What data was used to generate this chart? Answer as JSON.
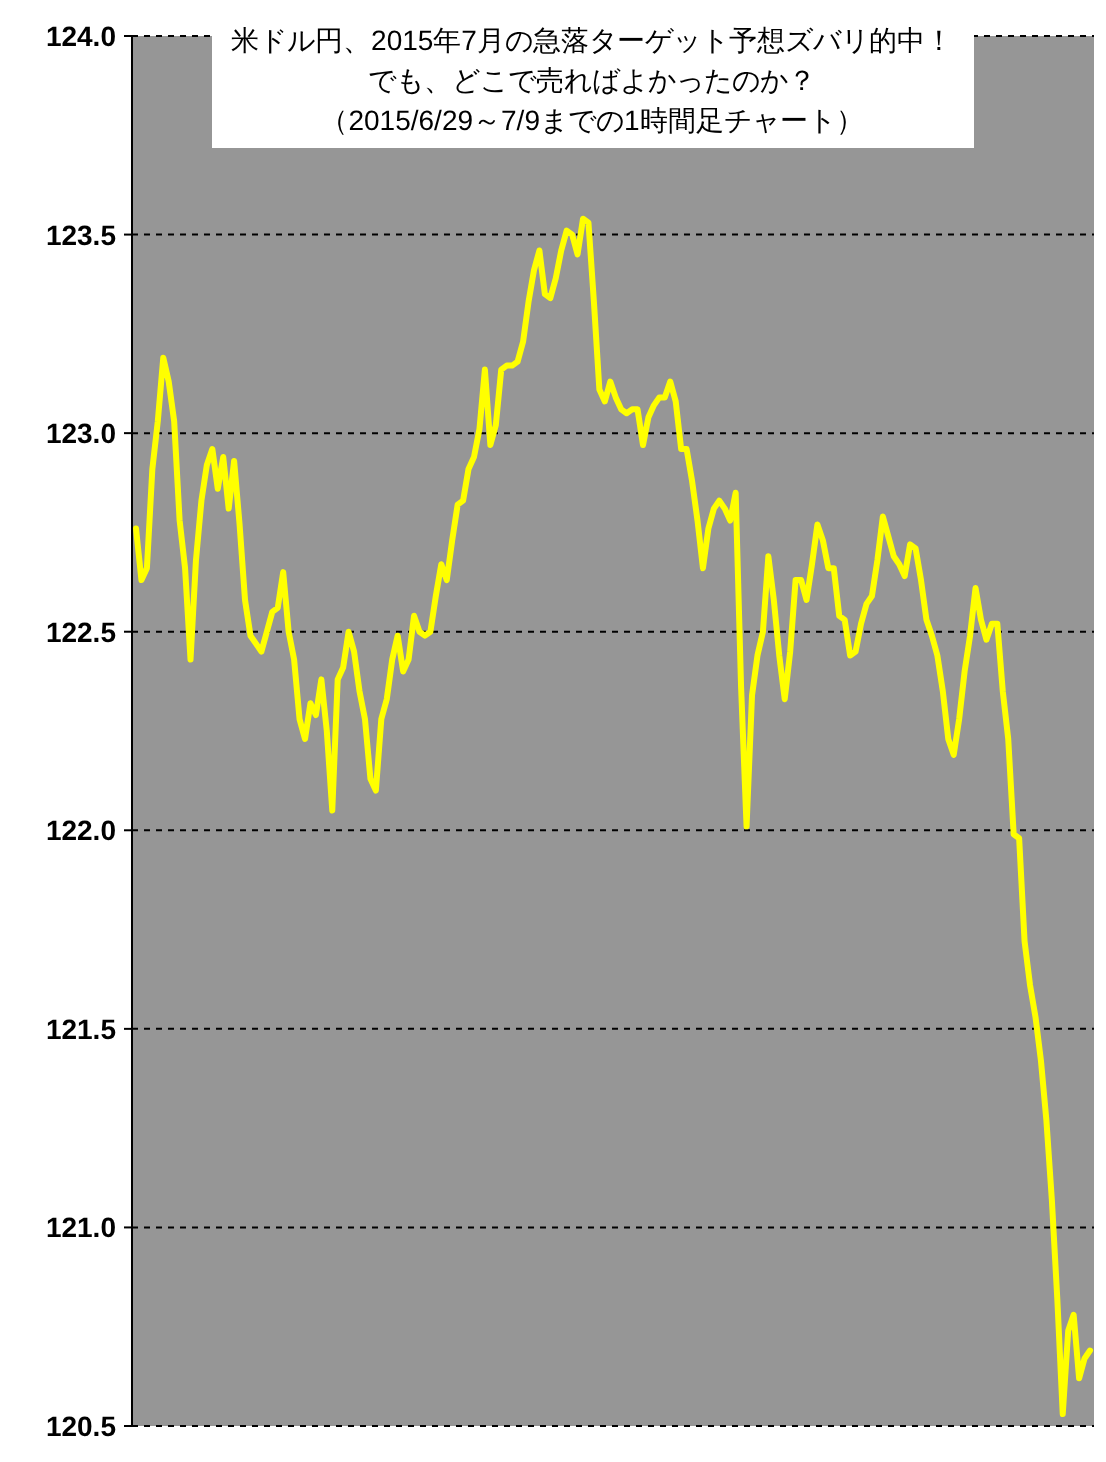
{
  "chart_data": {
    "type": "line",
    "title": "米ドル円、2015年7月の急落ターゲット予想ズバリ的中！",
    "subtitle": "でも、どこで売ればよかったのか？",
    "annotations": [
      "（2015/6/29～7/9までの1時間足チャート）"
    ],
    "categories": [
      null,
      null,
      null,
      null,
      null,
      null,
      null,
      null,
      null,
      null,
      null,
      null,
      null,
      null,
      null,
      null,
      null,
      null,
      null,
      null,
      null,
      null,
      null,
      null,
      null,
      null,
      null,
      null,
      null,
      null,
      null,
      null,
      null,
      null,
      null,
      null,
      null,
      null,
      null,
      null,
      null,
      null,
      null,
      null,
      null,
      null,
      null,
      null,
      null,
      null,
      null,
      null,
      null,
      null,
      null,
      null,
      null,
      null,
      null,
      null,
      null,
      null,
      null,
      null,
      null,
      null,
      null,
      null,
      null,
      null,
      null,
      null,
      null,
      null,
      null,
      null,
      null,
      null,
      null,
      null,
      null,
      null,
      null,
      null,
      null,
      null,
      null,
      null,
      null,
      null,
      null,
      null,
      null,
      null,
      null,
      null,
      null,
      null,
      null,
      null,
      null,
      null,
      null,
      null,
      null,
      null,
      null,
      null,
      null,
      null,
      null,
      null,
      null,
      null,
      null,
      null,
      null,
      null,
      null,
      null,
      null,
      null,
      null,
      null,
      null,
      null,
      null,
      null,
      null,
      null,
      null,
      null,
      null,
      null,
      null,
      null,
      null,
      null,
      null,
      null,
      null,
      null,
      null,
      null,
      null,
      null,
      null,
      null,
      null,
      null,
      null,
      null,
      null,
      null,
      null,
      null,
      null,
      null,
      null,
      null,
      null,
      null,
      null,
      null,
      null,
      null,
      null,
      null,
      null,
      null,
      null,
      null,
      null,
      null,
      null,
      null
    ],
    "series": [
      {
        "color": "#ffff00",
        "values": [
          122.76,
          122.63,
          122.66,
          122.91,
          123.03,
          123.19,
          123.13,
          123.03,
          122.78,
          122.66,
          122.43,
          122.68,
          122.83,
          122.92,
          122.96,
          122.86,
          122.94,
          122.81,
          122.93,
          122.77,
          122.58,
          122.49,
          122.47,
          122.45,
          122.5,
          122.55,
          122.56,
          122.65,
          122.5,
          122.43,
          122.28,
          122.23,
          122.32,
          122.29,
          122.38,
          122.25,
          122.05,
          122.38,
          122.41,
          122.5,
          122.45,
          122.35,
          122.28,
          122.13,
          122.1,
          122.28,
          122.33,
          122.43,
          122.49,
          122.4,
          122.43,
          122.54,
          122.5,
          122.49,
          122.5,
          122.59,
          122.67,
          122.63,
          122.73,
          122.82,
          122.83,
          122.91,
          122.94,
          123.01,
          123.16,
          122.97,
          123.02,
          123.16,
          123.17,
          123.17,
          123.18,
          123.23,
          123.33,
          123.41,
          123.46,
          123.35,
          123.34,
          123.39,
          123.46,
          123.51,
          123.5,
          123.45,
          123.54,
          123.53,
          123.33,
          123.11,
          123.08,
          123.13,
          123.09,
          123.06,
          123.05,
          123.06,
          123.06,
          122.97,
          123.04,
          123.07,
          123.09,
          123.09,
          123.13,
          123.08,
          122.96,
          122.96,
          122.88,
          122.78,
          122.66,
          122.76,
          122.81,
          122.83,
          122.81,
          122.78,
          122.85,
          122.36,
          122.01,
          122.34,
          122.44,
          122.5,
          122.69,
          122.58,
          122.44,
          122.33,
          122.45,
          122.63,
          122.63,
          122.58,
          122.67,
          122.77,
          122.73,
          122.66,
          122.66,
          122.54,
          122.53,
          122.44,
          122.45,
          122.52,
          122.57,
          122.59,
          122.68,
          122.79,
          122.74,
          122.69,
          122.67,
          122.64,
          122.72,
          122.71,
          122.63,
          122.53,
          122.49,
          122.44,
          122.35,
          122.23,
          122.19,
          122.28,
          122.4,
          122.49,
          122.61,
          122.53,
          122.48,
          122.52,
          122.52,
          122.35,
          122.23,
          121.99,
          121.98,
          121.72,
          121.61,
          121.53,
          121.42,
          121.27,
          121.07,
          120.82,
          120.53,
          120.74,
          120.78,
          120.62,
          120.67,
          120.69
        ]
      }
    ],
    "ylim": [
      120.5,
      124.0
    ],
    "yticks": [
      {
        "value": 120.5,
        "label": "120.5"
      },
      {
        "value": 121,
        "label": "121.0"
      },
      {
        "value": 121.5,
        "label": "121.5"
      },
      {
        "value": 122,
        "label": "122.0"
      },
      {
        "value": 122.5,
        "label": "122.5"
      },
      {
        "value": 123,
        "label": "123.0"
      },
      {
        "value": 123.5,
        "label": "123.5"
      },
      {
        "value": 124,
        "label": "124.0"
      }
    ],
    "grid": "y"
  }
}
